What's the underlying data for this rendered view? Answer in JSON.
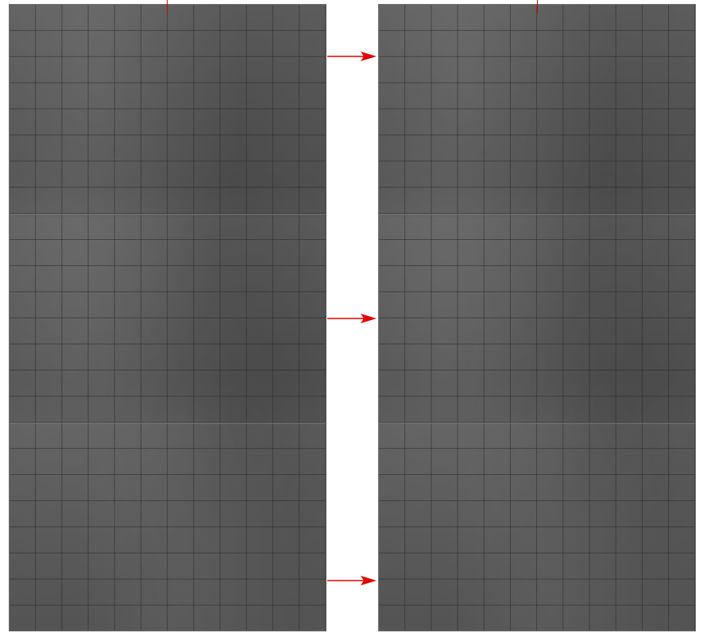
{
  "panels": [
    {
      "name": "left-image-panel"
    },
    {
      "name": "right-image-panel"
    }
  ],
  "arrows": {
    "count": 3,
    "color": "#e00000"
  },
  "markers": {
    "color": "#e00000"
  },
  "colors": {
    "tile_base": "#575757",
    "grid_line": "#282828",
    "background": "#ffffff"
  }
}
